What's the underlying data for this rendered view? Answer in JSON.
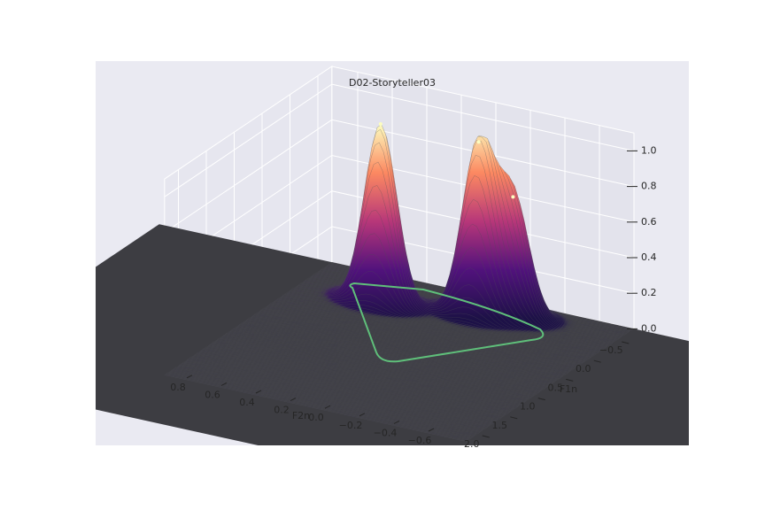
{
  "chart_data": {
    "type": "surface3d",
    "title": "D02-Storyteller03",
    "xlabel": "F1n",
    "ylabel": "F2n",
    "x": [
      -0.17,
      -0.35,
      -0.47
    ],
    "y": [
      0.48,
      -0.03,
      -0.19
    ],
    "z": [
      1.0,
      0.97,
      0.67
    ],
    "xlim": [
      -0.75,
      2.25
    ],
    "ylim": [
      -0.8,
      0.95
    ],
    "zlim": [
      0,
      1
    ],
    "xticks": [
      {
        "value": -0.5,
        "label": "−0.5"
      },
      {
        "value": 0,
        "label": "0.0"
      },
      {
        "value": 0.5,
        "label": "0.5"
      },
      {
        "value": 1,
        "label": "1.0"
      },
      {
        "value": 1.5,
        "label": "1.5"
      },
      {
        "value": 2,
        "label": "2.0"
      }
    ],
    "yticks": [
      {
        "value": -0.6,
        "label": "−0.6"
      },
      {
        "value": -0.4,
        "label": "−0.4"
      },
      {
        "value": -0.2,
        "label": "−0.2"
      },
      {
        "value": 0,
        "label": "0.0"
      },
      {
        "value": 0.2,
        "label": "0.2"
      },
      {
        "value": 0.4,
        "label": "0.4"
      },
      {
        "value": 0.6,
        "label": "0.6"
      },
      {
        "value": 0.8,
        "label": "0.8"
      }
    ],
    "zticks": [
      {
        "value": 0,
        "label": "0.0"
      },
      {
        "value": 0.2,
        "label": "0.2"
      },
      {
        "value": 0.4,
        "label": "0.4"
      },
      {
        "value": 0.6,
        "label": "0.6"
      },
      {
        "value": 0.8,
        "label": "0.8"
      },
      {
        "value": 1,
        "label": "1.0"
      }
    ],
    "colormap": "magma",
    "grid": true
  }
}
